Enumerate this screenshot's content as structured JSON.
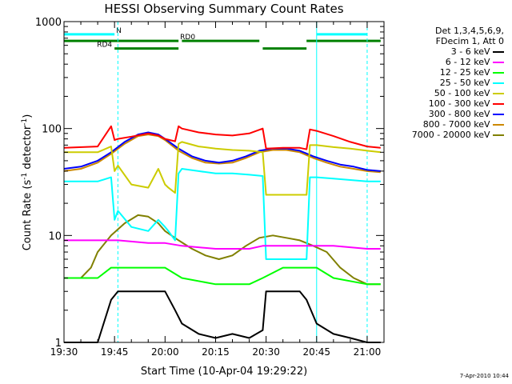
{
  "chart_data": {
    "type": "line",
    "title": "HESSI Observing Summary Count Rates",
    "xlabel": "Start Time (10-Apr-04 19:29:22)",
    "ylabel_main": "Count Rate (s",
    "ylabel_sup1": "-1",
    "ylabel_mid": " detector",
    "ylabel_sup2": "-1",
    "ylabel_end": ")",
    "yscale": "log",
    "ylim": [
      1,
      1000
    ],
    "xlim_minutes": [
      0,
      95
    ],
    "xticks": [
      {
        "label": "19:30",
        "minute": 0
      },
      {
        "label": "19:45",
        "minute": 15
      },
      {
        "label": "20:00",
        "minute": 30
      },
      {
        "label": "20:15",
        "minute": 45
      },
      {
        "label": "20:30",
        "minute": 60
      },
      {
        "label": "20:45",
        "minute": 75
      },
      {
        "label": "21:00",
        "minute": 90
      }
    ],
    "yticks": [
      {
        "label": "1",
        "value": 1
      },
      {
        "label": "10",
        "value": 10
      },
      {
        "label": "100",
        "value": 100
      },
      {
        "label": "1000",
        "value": 1000
      }
    ],
    "legend_header": [
      "Det 1,3,4,5,6,9,",
      "FDecim 1, Att 0"
    ],
    "series": [
      {
        "name": "3 - 6 keV",
        "color": "#000000",
        "x": [
          0,
          10,
          14,
          16,
          25,
          30,
          33,
          35,
          40,
          45,
          50,
          55,
          59,
          60,
          70,
          72,
          75,
          80,
          85,
          90,
          94
        ],
        "y": [
          1,
          1,
          2.5,
          3,
          3,
          3,
          2,
          1.5,
          1.2,
          1.1,
          1.2,
          1.1,
          1.3,
          3,
          3,
          2.5,
          1.5,
          1.2,
          1.1,
          1,
          1
        ]
      },
      {
        "name": "6 - 12 keV",
        "color": "#ff00ff",
        "x": [
          0,
          10,
          14,
          16,
          25,
          30,
          35,
          45,
          55,
          59,
          65,
          70,
          75,
          80,
          90,
          94
        ],
        "y": [
          9,
          9,
          9,
          9,
          8.5,
          8.5,
          8,
          7.5,
          7.5,
          8,
          8,
          8,
          8,
          8,
          7.5,
          7.5
        ]
      },
      {
        "name": "12 - 25 keV",
        "color": "#00ff00",
        "x": [
          0,
          10,
          14,
          16,
          25,
          30,
          35,
          45,
          55,
          59,
          65,
          70,
          75,
          80,
          90,
          94
        ],
        "y": [
          4,
          4,
          5,
          5,
          5,
          5,
          4,
          3.5,
          3.5,
          4,
          5,
          5,
          5,
          4,
          3.5,
          3.5
        ]
      },
      {
        "name": "25 - 50 keV",
        "color": "#00ffff",
        "x": [
          0,
          10,
          14,
          15,
          16,
          20,
          25,
          28,
          30,
          31,
          33,
          34,
          35,
          40,
          45,
          50,
          55,
          59,
          60,
          65,
          70,
          72,
          73,
          75,
          80,
          85,
          90,
          94
        ],
        "y": [
          32,
          32,
          35,
          14,
          17,
          12,
          11,
          14,
          12,
          11,
          9,
          38,
          42,
          40,
          38,
          38,
          37,
          36,
          6,
          6,
          6,
          6,
          35,
          35,
          34,
          33,
          32,
          32
        ]
      },
      {
        "name": "50 - 100 keV",
        "color": "#cccc00",
        "x": [
          0,
          10,
          14,
          15,
          16,
          20,
          25,
          28,
          30,
          31,
          33,
          34,
          35,
          40,
          45,
          50,
          55,
          59,
          60,
          65,
          70,
          72,
          73,
          75,
          80,
          85,
          90,
          94
        ],
        "y": [
          60,
          60,
          68,
          40,
          45,
          30,
          28,
          42,
          30,
          28,
          25,
          72,
          75,
          68,
          65,
          63,
          62,
          60,
          24,
          24,
          24,
          24,
          70,
          70,
          67,
          65,
          62,
          60
        ]
      },
      {
        "name": "100 - 300 keV",
        "color": "#ff0000",
        "x": [
          0,
          10,
          14,
          15,
          16,
          20,
          25,
          28,
          30,
          33,
          34,
          35,
          40,
          45,
          50,
          55,
          59,
          60,
          65,
          70,
          72,
          73,
          75,
          80,
          85,
          90,
          94
        ],
        "y": [
          66,
          68,
          105,
          78,
          80,
          84,
          90,
          86,
          80,
          76,
          105,
          100,
          92,
          88,
          86,
          90,
          100,
          65,
          66,
          66,
          64,
          98,
          95,
          85,
          75,
          68,
          66
        ]
      },
      {
        "name": "300 - 800 keV",
        "color": "#0000ff",
        "x": [
          0,
          5,
          10,
          14,
          18,
          22,
          25,
          28,
          30,
          34,
          38,
          42,
          46,
          50,
          54,
          58,
          62,
          66,
          70,
          74,
          78,
          82,
          86,
          90,
          94
        ],
        "y": [
          42,
          44,
          50,
          60,
          75,
          88,
          92,
          88,
          80,
          65,
          55,
          50,
          48,
          50,
          55,
          62,
          65,
          65,
          62,
          55,
          50,
          46,
          44,
          41,
          40
        ]
      },
      {
        "name": "800 - 7000 keV",
        "color": "#cc8800",
        "x": [
          0,
          5,
          10,
          14,
          18,
          22,
          25,
          28,
          30,
          34,
          38,
          42,
          46,
          50,
          54,
          58,
          62,
          66,
          70,
          74,
          78,
          82,
          86,
          90,
          94
        ],
        "y": [
          40,
          42,
          48,
          58,
          72,
          85,
          88,
          85,
          78,
          62,
          53,
          48,
          47,
          48,
          53,
          60,
          63,
          63,
          60,
          53,
          48,
          44,
          42,
          40,
          39
        ]
      },
      {
        "name": "7000 - 20000 keV",
        "color": "#808000",
        "x": [
          0,
          5,
          8,
          10,
          14,
          18,
          22,
          25,
          28,
          30,
          34,
          38,
          42,
          46,
          50,
          54,
          58,
          62,
          66,
          70,
          74,
          78,
          82,
          86,
          90,
          94
        ],
        "y": [
          4,
          4,
          5,
          7,
          10,
          13,
          15.5,
          15,
          13,
          11,
          9,
          7.5,
          6.5,
          6,
          6.5,
          8,
          9.5,
          10,
          9.5,
          9,
          8,
          7,
          5,
          4,
          3.5,
          3.5
        ]
      }
    ],
    "flags": {
      "saa_N": {
        "label": "N",
        "color": "#00ffff",
        "y_value": 760,
        "segments": [
          [
            0,
            15
          ],
          [
            75,
            90
          ]
        ]
      },
      "rd0": {
        "label": "RD0",
        "color": "#008000",
        "y_value": 660,
        "segments": [
          [
            0,
            34
          ],
          [
            35,
            58
          ],
          [
            72,
            94
          ]
        ]
      },
      "rd4": {
        "label": "RD4",
        "color": "#008000",
        "y_value": 560,
        "segments": [
          [
            15,
            34
          ],
          [
            59,
            72
          ]
        ]
      }
    },
    "vlines": [
      {
        "minute": 0,
        "color": "#00ffff",
        "style": "solid"
      },
      {
        "minute": 16,
        "color": "#00ffff",
        "style": "dashed"
      },
      {
        "minute": 75,
        "color": "#00ffff",
        "style": "solid"
      },
      {
        "minute": 90,
        "color": "#00ffff",
        "style": "dashed"
      }
    ],
    "grid": false,
    "legend_position": "right"
  },
  "stamp": "7-Apr-2010 10:44"
}
